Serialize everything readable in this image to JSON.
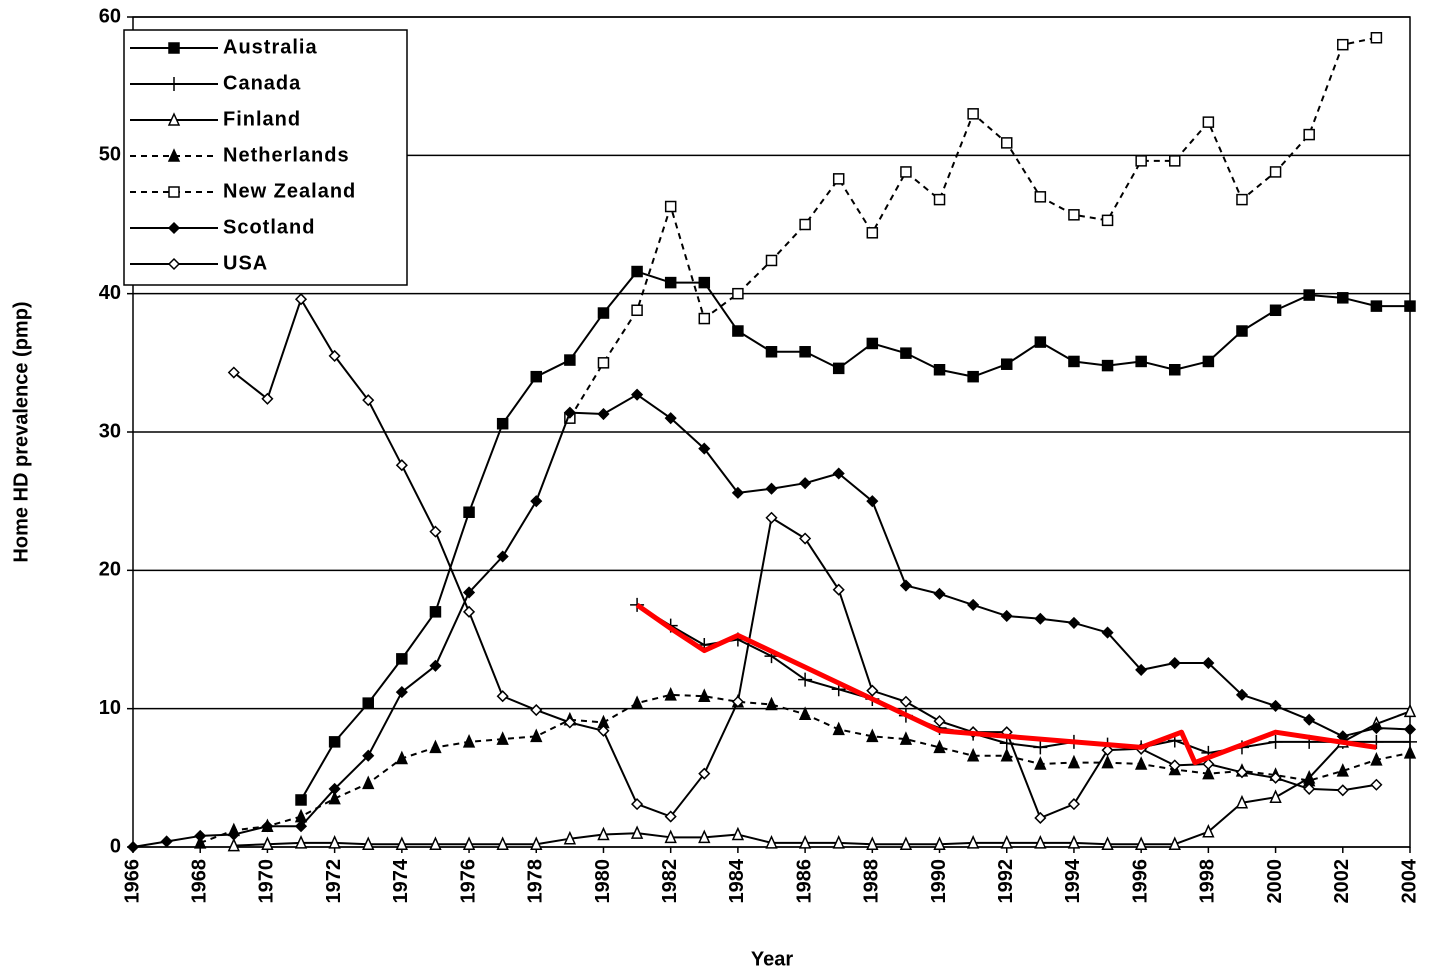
{
  "chart_data": {
    "type": "line",
    "xlabel": "Year",
    "ylabel": "Home HD prevalence (pmp)",
    "x": [
      1966,
      1967,
      1968,
      1969,
      1970,
      1971,
      1972,
      1973,
      1974,
      1975,
      1976,
      1977,
      1978,
      1979,
      1980,
      1981,
      1982,
      1983,
      1984,
      1985,
      1986,
      1987,
      1988,
      1989,
      1990,
      1991,
      1992,
      1993,
      1994,
      1995,
      1996,
      1997,
      1998,
      1999,
      2000,
      2001,
      2002,
      2003,
      2004
    ],
    "xlim": [
      1966,
      2004
    ],
    "xticks": [
      1966,
      1968,
      1970,
      1972,
      1974,
      1976,
      1978,
      1980,
      1982,
      1984,
      1986,
      1988,
      1990,
      1992,
      1994,
      1996,
      1998,
      2000,
      2002,
      2004
    ],
    "ylim": [
      0,
      60
    ],
    "yticks": [
      0,
      10,
      20,
      30,
      40,
      50,
      60
    ],
    "grid": true,
    "legend": "upper left",
    "series": [
      {
        "name": "Australia",
        "color": "#000000",
        "marker": "square",
        "filled": true,
        "dashed": false,
        "values": [
          null,
          null,
          null,
          null,
          null,
          3.4,
          7.6,
          10.4,
          13.6,
          17,
          24.2,
          30.6,
          34,
          35.2,
          38.6,
          41.6,
          40.8,
          40.8,
          37.3,
          35.8,
          35.8,
          34.6,
          36.4,
          35.7,
          34.5,
          34,
          34.9,
          36.5,
          35.1,
          34.8,
          35.1,
          34.5,
          35.1,
          37.3,
          38.8,
          39.9,
          39.7,
          39.1,
          39.1
        ]
      },
      {
        "name": "Canada",
        "color": "#000000",
        "marker": "plus",
        "filled": false,
        "dashed": false,
        "values": [
          null,
          null,
          null,
          null,
          null,
          null,
          null,
          null,
          null,
          null,
          null,
          null,
          null,
          null,
          null,
          17.5,
          16,
          14.6,
          15,
          13.8,
          12.1,
          11.4,
          10.7,
          9.5,
          8.6,
          8.2,
          7.5,
          7.2,
          7.6,
          7.4,
          7.2,
          7.7,
          6.8,
          7.2,
          7.6,
          7.6,
          7.6,
          7.6,
          7.6
        ]
      },
      {
        "name": "Finland",
        "color": "#000000",
        "marker": "triangle",
        "filled": false,
        "dashed": false,
        "values": [
          null,
          null,
          null,
          0.1,
          0.2,
          0.3,
          0.3,
          0.2,
          0.2,
          0.2,
          0.2,
          0.2,
          0.2,
          0.6,
          0.9,
          1,
          0.7,
          0.7,
          0.9,
          0.3,
          0.3,
          0.3,
          0.2,
          0.2,
          0.2,
          0.3,
          0.3,
          0.3,
          0.3,
          0.2,
          0.2,
          0.2,
          1.1,
          3.2,
          3.6,
          5,
          7.6,
          8.9,
          9.8
        ]
      },
      {
        "name": "Netherlands",
        "color": "#000000",
        "marker": "triangle",
        "filled": true,
        "dashed": true,
        "values": [
          null,
          null,
          0.3,
          1.2,
          1.5,
          2.2,
          3.5,
          4.6,
          6.4,
          7.2,
          7.6,
          7.8,
          8,
          9.2,
          9,
          10.4,
          11,
          10.9,
          10.5,
          10.3,
          9.6,
          8.5,
          8,
          7.8,
          7.2,
          6.6,
          6.6,
          6,
          6.1,
          6.1,
          6,
          5.6,
          5.3,
          5.5,
          5.2,
          4.8,
          5.5,
          6.3,
          6.8
        ]
      },
      {
        "name": "New Zealand",
        "color": "#000000",
        "marker": "square",
        "filled": false,
        "dashed": true,
        "values": [
          null,
          null,
          null,
          null,
          null,
          null,
          null,
          null,
          null,
          null,
          null,
          null,
          null,
          31,
          35,
          38.8,
          46.3,
          38.2,
          40,
          42.4,
          45,
          48.3,
          44.4,
          48.8,
          46.8,
          53,
          50.9,
          47,
          45.7,
          45.3,
          49.6,
          49.6,
          52.4,
          46.8,
          48.8,
          51.5,
          58,
          58.5,
          null
        ]
      },
      {
        "name": "Scotland",
        "color": "#000000",
        "marker": "diamond",
        "filled": true,
        "dashed": false,
        "values": [
          0,
          0.4,
          0.8,
          0.9,
          1.5,
          1.5,
          4.2,
          6.6,
          11.2,
          13.1,
          18.4,
          21,
          25,
          31.4,
          31.3,
          32.7,
          31,
          28.8,
          25.6,
          25.9,
          26.3,
          27,
          25,
          18.9,
          18.3,
          17.5,
          16.7,
          16.5,
          16.2,
          15.5,
          12.8,
          13.3,
          13.3,
          11,
          10.2,
          9.2,
          8,
          8.6,
          8.5
        ]
      },
      {
        "name": "USA",
        "color": "#000000",
        "marker": "diamond",
        "filled": false,
        "dashed": false,
        "values": [
          null,
          null,
          null,
          34.3,
          32.4,
          39.6,
          35.5,
          32.3,
          27.6,
          22.8,
          17,
          10.9,
          9.9,
          9,
          8.4,
          3.1,
          2.2,
          5.3,
          10.5,
          23.8,
          22.3,
          18.6,
          11.3,
          10.5,
          9.1,
          8.3,
          8.3,
          2.1,
          3.1,
          7,
          7.1,
          5.9,
          6,
          5.4,
          5,
          4.2,
          4.1,
          4.5,
          null
        ]
      },
      {
        "color": "#ff0000",
        "marker": "none",
        "filled": false,
        "dashed": false,
        "x": [
          1981,
          1982,
          1983,
          1984,
          1990,
          1996,
          1997.2,
          1997.6,
          2000,
          2003
        ],
        "values": [
          17.5,
          15.8,
          14.2,
          15.3,
          8.4,
          7.2,
          8.3,
          6.1,
          8.3,
          7.2
        ]
      }
    ]
  }
}
